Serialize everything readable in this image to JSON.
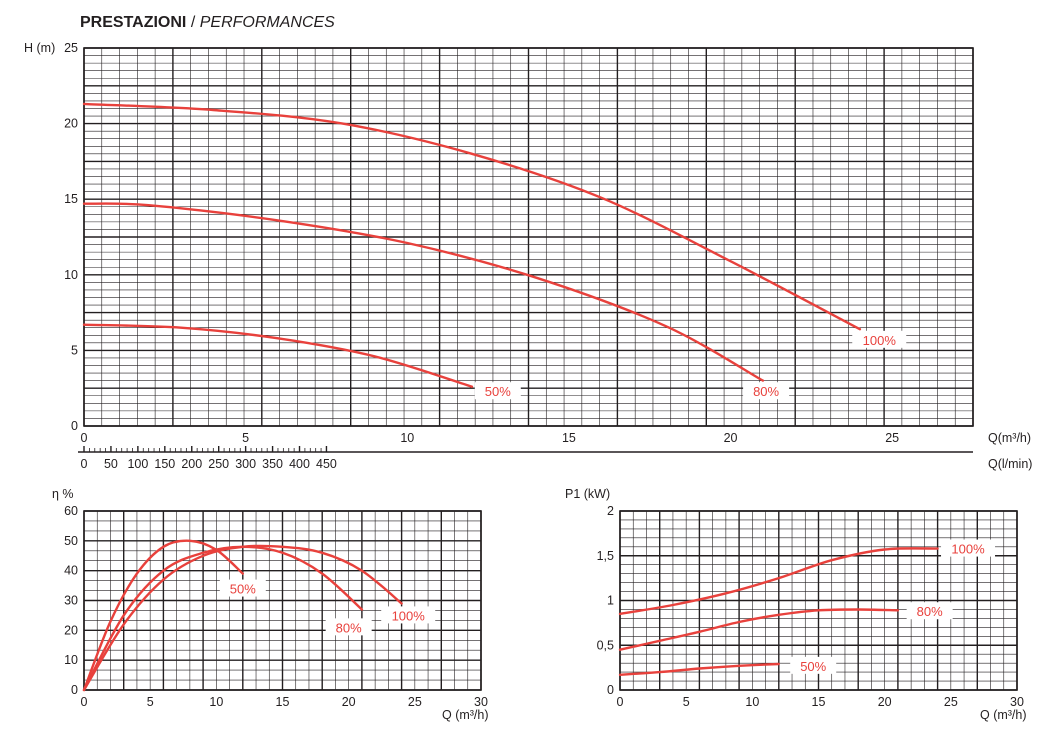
{
  "title": {
    "strong": "PRESTAZIONI",
    "separator": " / ",
    "italic": "PERFORMANCES"
  },
  "chart_data": [
    {
      "type": "line",
      "ylabel": "H (m)",
      "xlabel": "Q(m³/h)",
      "xlabel2": "Q(l/min)",
      "xlim": [
        0,
        27.5
      ],
      "ylim": [
        0,
        25
      ],
      "x_ticks": [
        "0",
        "5",
        "10",
        "15",
        "20",
        "25"
      ],
      "x_ticks_values": [
        0,
        5,
        10,
        15,
        20,
        25
      ],
      "x2_ticks": [
        "0",
        "50",
        "100",
        "150",
        "200",
        "250",
        "300",
        "350",
        "400",
        "450"
      ],
      "x2_ticks_values": [
        0,
        50,
        100,
        150,
        200,
        250,
        300,
        350,
        400,
        450
      ],
      "y_ticks": [
        "0",
        "5",
        "10",
        "15",
        "20",
        "25"
      ],
      "y_ticks_values": [
        0,
        5,
        10,
        15,
        20,
        25
      ],
      "grid": true,
      "color": "#e8413c",
      "series": [
        {
          "name": "100%",
          "x": [
            0,
            4,
            8,
            12,
            16,
            20,
            24
          ],
          "values": [
            21.3,
            20.9,
            20.0,
            18.0,
            15.1,
            10.9,
            6.4
          ]
        },
        {
          "name": "80%",
          "x": [
            0,
            2,
            6,
            10,
            14,
            18,
            21
          ],
          "values": [
            14.7,
            14.6,
            13.6,
            12.1,
            9.8,
            6.6,
            3.0
          ]
        },
        {
          "name": "50%",
          "x": [
            0,
            3,
            6,
            9,
            12
          ],
          "values": [
            6.7,
            6.5,
            5.8,
            4.6,
            2.6
          ]
        }
      ],
      "labels": [
        {
          "text": "100%",
          "x": 24.6,
          "y": 5.7
        },
        {
          "text": "80%",
          "x": 21.1,
          "y": 2.3
        },
        {
          "text": "50%",
          "x": 12.8,
          "y": 2.3
        }
      ]
    },
    {
      "type": "line",
      "ylabel": "η %",
      "xlabel": "Q (m³/h)",
      "xlim": [
        0,
        30
      ],
      "ylim": [
        0,
        60
      ],
      "x_ticks": [
        "0",
        "5",
        "10",
        "15",
        "20",
        "25",
        "30"
      ],
      "x_ticks_values": [
        0,
        5,
        10,
        15,
        20,
        25,
        30
      ],
      "y_ticks": [
        "0",
        "10",
        "20",
        "30",
        "40",
        "50",
        "60"
      ],
      "y_ticks_values": [
        0,
        10,
        20,
        30,
        40,
        50,
        60
      ],
      "grid": true,
      "color": "#e8413c",
      "series": [
        {
          "name": "100%",
          "x": [
            0,
            3,
            6,
            9,
            12,
            15,
            18,
            21,
            24
          ],
          "values": [
            0,
            22,
            37,
            45,
            48,
            48,
            46,
            40,
            29
          ]
        },
        {
          "name": "80%",
          "x": [
            0,
            3,
            6,
            9,
            12,
            15,
            18,
            21
          ],
          "values": [
            0,
            25,
            40,
            46,
            48,
            46,
            39,
            27
          ]
        },
        {
          "name": "50%",
          "x": [
            0,
            2,
            4,
            6,
            8,
            10,
            12
          ],
          "values": [
            0,
            23,
            39,
            48,
            50,
            47,
            39
          ]
        }
      ],
      "labels": [
        {
          "text": "100%",
          "x": 24.5,
          "y": 25
        },
        {
          "text": "80%",
          "x": 20.0,
          "y": 21
        },
        {
          "text": "50%",
          "x": 12.0,
          "y": 34
        }
      ]
    },
    {
      "type": "line",
      "ylabel": "P1 (kW)",
      "xlabel": "Q (m³/h)",
      "xlim": [
        0,
        30
      ],
      "ylim": [
        0,
        2
      ],
      "x_ticks": [
        "0",
        "5",
        "10",
        "15",
        "20",
        "25",
        "30"
      ],
      "x_ticks_values": [
        0,
        5,
        10,
        15,
        20,
        25,
        30
      ],
      "y_ticks": [
        "0",
        "0,5",
        "1",
        "1,5",
        "2"
      ],
      "y_ticks_values": [
        0,
        0.5,
        1,
        1.5,
        2
      ],
      "grid": true,
      "color": "#e8413c",
      "series": [
        {
          "name": "100%",
          "x": [
            0,
            4,
            8,
            12,
            16,
            20,
            24
          ],
          "values": [
            0.85,
            0.95,
            1.08,
            1.25,
            1.45,
            1.57,
            1.58
          ]
        },
        {
          "name": "80%",
          "x": [
            0,
            3,
            6,
            9,
            12,
            15,
            18,
            21
          ],
          "values": [
            0.45,
            0.55,
            0.65,
            0.76,
            0.84,
            0.89,
            0.9,
            0.89
          ]
        },
        {
          "name": "50%",
          "x": [
            0,
            3,
            6,
            9,
            12
          ],
          "values": [
            0.17,
            0.2,
            0.24,
            0.27,
            0.29
          ]
        }
      ],
      "labels": [
        {
          "text": "100%",
          "x": 26.3,
          "y": 1.58
        },
        {
          "text": "80%",
          "x": 23.4,
          "y": 0.88
        },
        {
          "text": "50%",
          "x": 14.6,
          "y": 0.27
        }
      ]
    }
  ]
}
